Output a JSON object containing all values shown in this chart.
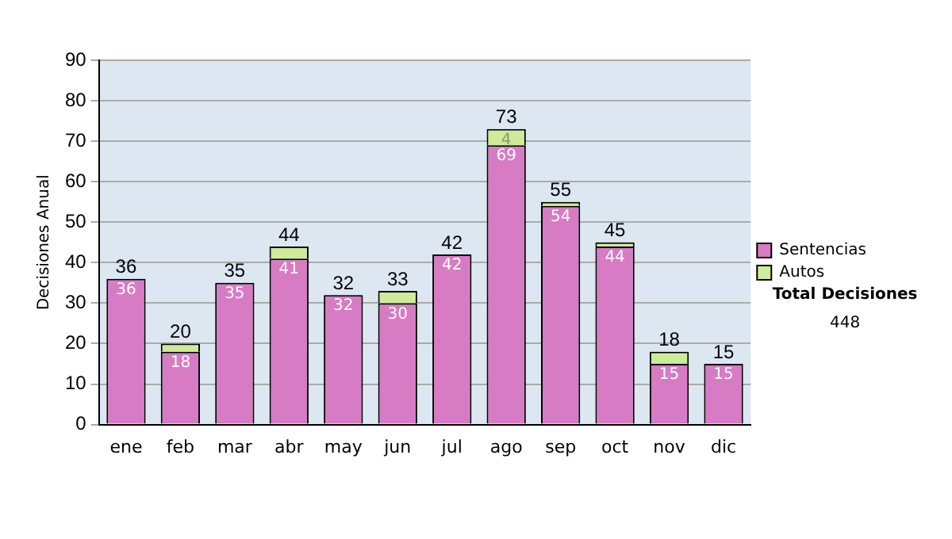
{
  "chart_data": {
    "type": "bar",
    "stacked": true,
    "ylabel": "Decisiones Anual",
    "categories": [
      "ene",
      "feb",
      "mar",
      "abr",
      "may",
      "jun",
      "jul",
      "ago",
      "sep",
      "oct",
      "nov",
      "dic"
    ],
    "series": [
      {
        "name": "Sentencias",
        "color": "#d77cc4",
        "values": [
          36,
          18,
          35,
          41,
          32,
          30,
          42,
          69,
          54,
          44,
          15,
          15
        ],
        "value_labels": [
          "36",
          "18",
          "35",
          "41",
          "32",
          "30",
          "42",
          "69",
          "54",
          "44",
          "15",
          "15"
        ]
      },
      {
        "name": "Autos",
        "color": "#cdeb99",
        "values": [
          0,
          2,
          0,
          3,
          0,
          3,
          0,
          4,
          1,
          1,
          3,
          0
        ],
        "value_labels": [
          null,
          null,
          null,
          null,
          null,
          null,
          null,
          "4",
          null,
          null,
          null,
          null
        ]
      }
    ],
    "totals": [
      "36",
      "20",
      "35",
      "44",
      "32",
      "33",
      "42",
      "73",
      "55",
      "45",
      "18",
      "15"
    ],
    "ylim": [
      0,
      90
    ],
    "yticks": [
      0,
      10,
      20,
      30,
      40,
      50,
      60,
      70,
      80,
      90
    ],
    "grid": "y",
    "legend": "right",
    "annotations": [
      "Total Decisiones",
      "448"
    ]
  }
}
